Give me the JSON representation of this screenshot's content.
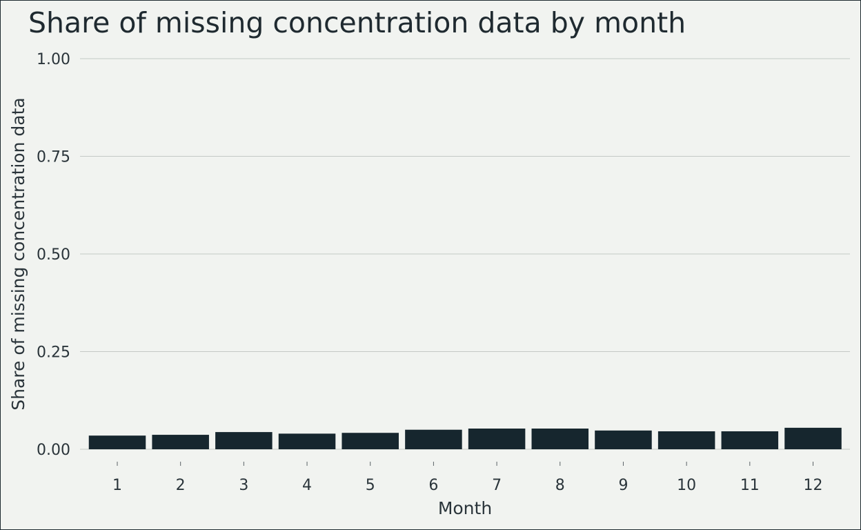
{
  "chart_data": {
    "type": "bar",
    "title": "Share of missing concentration data by month",
    "xlabel": "Month",
    "ylabel": "Share of missing concentration data",
    "categories": [
      "1",
      "2",
      "3",
      "4",
      "5",
      "6",
      "7",
      "8",
      "9",
      "10",
      "11",
      "12"
    ],
    "values": [
      0.035,
      0.037,
      0.044,
      0.04,
      0.042,
      0.05,
      0.053,
      0.053,
      0.048,
      0.046,
      0.046,
      0.055
    ],
    "ylim": [
      0,
      1
    ],
    "yticks": [
      "0.00",
      "0.25",
      "0.50",
      "0.75",
      "1.00"
    ],
    "ytick_values": [
      0,
      0.25,
      0.5,
      0.75,
      1
    ],
    "grid": "horizontal",
    "legend": "none",
    "colors": {
      "bar": "#16262e",
      "grid": "#c4c8c5",
      "background": "#f1f3f0"
    }
  }
}
